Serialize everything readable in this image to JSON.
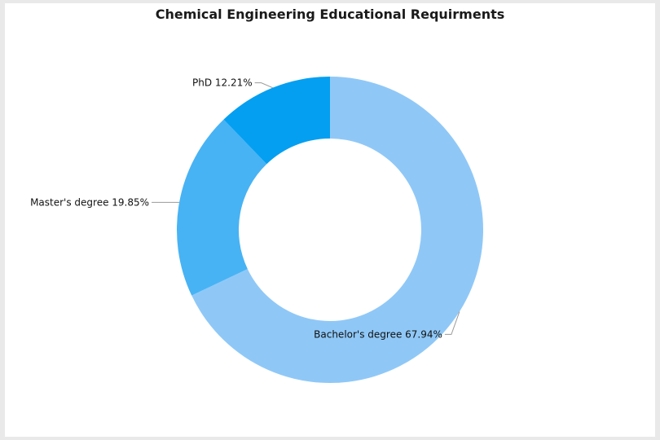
{
  "chart_data": {
    "type": "pie",
    "title": "Chemical Engineering Educational Requirments",
    "donut": true,
    "slices": [
      {
        "name": "Bachelor's degree",
        "value": 67.94,
        "label": "Bachelor's degree 67.94%",
        "color": "#8fc8f7"
      },
      {
        "name": "Master's degree",
        "value": 19.85,
        "label": "Master's degree 19.85%",
        "color": "#47b3f4"
      },
      {
        "name": "PhD",
        "value": 12.21,
        "label": "PhD 12.21%",
        "color": "#049ff1"
      }
    ]
  }
}
